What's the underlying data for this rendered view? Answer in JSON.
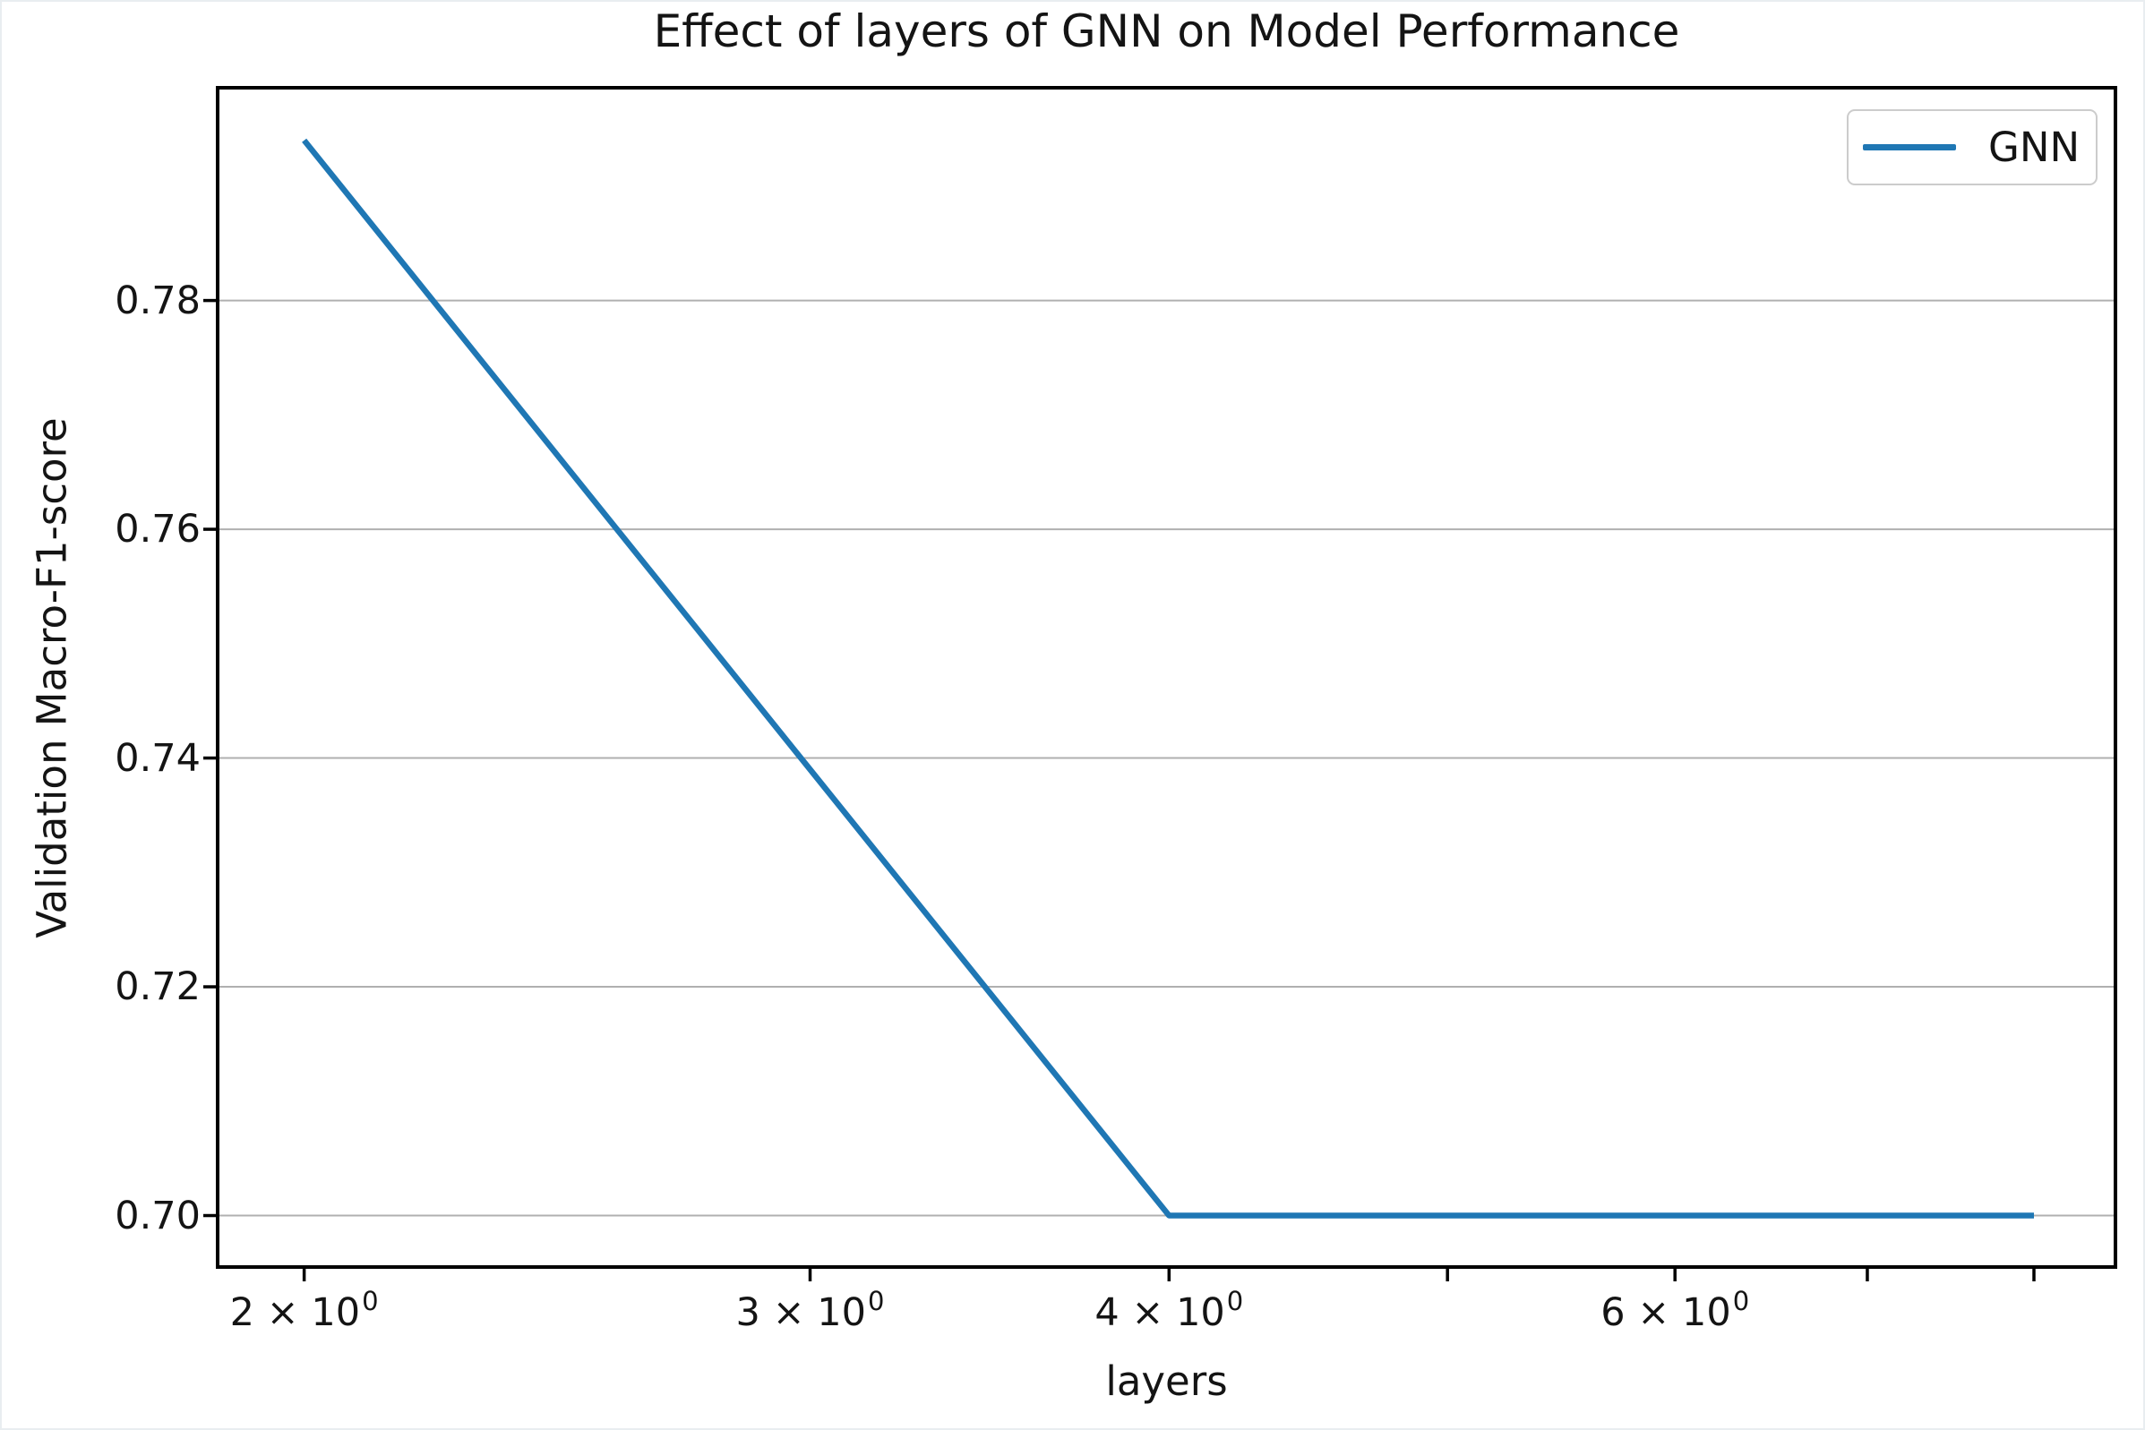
{
  "figure": {
    "title": "Effect of layers of GNN on Model Performance",
    "xlabel": "layers",
    "ylabel": "Validation Macro-F1-score",
    "legend": {
      "label": "GNN"
    },
    "colors": {
      "line": "#1f77b4",
      "grid": "#b0b0b0",
      "spine": "#000000",
      "text": "#141414",
      "legend_border": "#cccccc",
      "background": "#ffffff"
    }
  },
  "chart_data": {
    "type": "line",
    "title": "Effect of layers of GNN on Model Performance",
    "xlabel": "layers",
    "ylabel": "Validation Macro-F1-score",
    "x_scale": "log",
    "grid": "horizontal-only",
    "legend_position": "upper right",
    "xlim": [
      1.866,
      8.54
    ],
    "ylim": [
      0.6955,
      0.7986
    ],
    "series": [
      {
        "name": "GNN",
        "color": "#1f77b4",
        "x": [
          2,
          3,
          4,
          5,
          6,
          7,
          8
        ],
        "y": [
          0.794,
          0.739,
          0.7,
          0.7,
          0.7,
          0.7,
          0.7
        ]
      }
    ],
    "xticks": [
      {
        "value": 2,
        "coef": "2",
        "times": "×",
        "base": "10",
        "exp": "0"
      },
      {
        "value": 3,
        "coef": "3",
        "times": "×",
        "base": "10",
        "exp": "0"
      },
      {
        "value": 4,
        "coef": "4",
        "times": "×",
        "base": "10",
        "exp": "0"
      },
      {
        "value": 5
      },
      {
        "value": 6,
        "coef": "6",
        "times": "×",
        "base": "10",
        "exp": "0"
      },
      {
        "value": 7
      },
      {
        "value": 8
      }
    ],
    "yticks": [
      {
        "value": 0.7,
        "label": "0.70"
      },
      {
        "value": 0.72,
        "label": "0.72"
      },
      {
        "value": 0.74,
        "label": "0.74"
      },
      {
        "value": 0.76,
        "label": "0.76"
      },
      {
        "value": 0.78,
        "label": "0.78"
      }
    ]
  }
}
